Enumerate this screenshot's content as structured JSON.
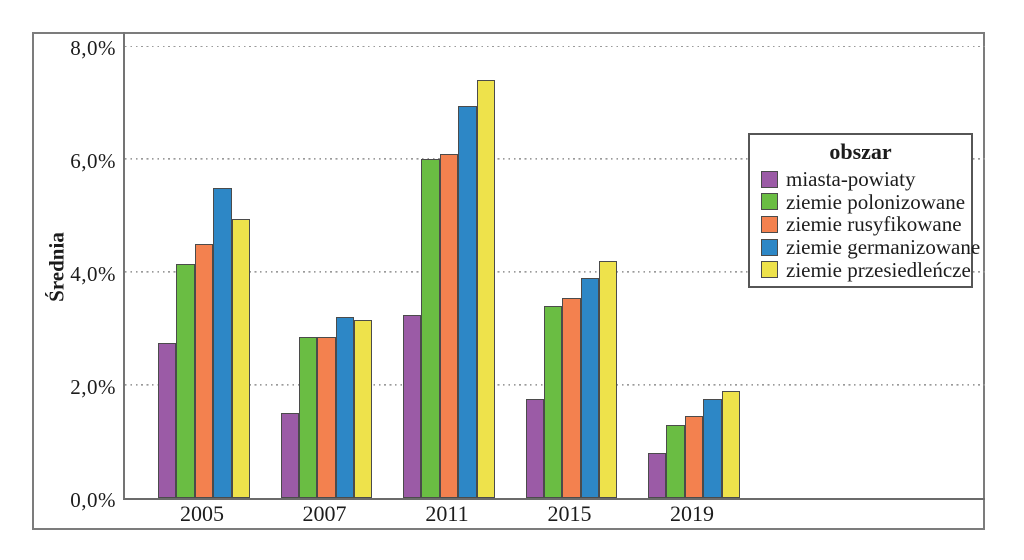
{
  "chart_data": {
    "type": "bar",
    "title": "",
    "ylabel": "Średnia",
    "xlabel": "",
    "legend_title": "obszar",
    "legend_position": "right-inside",
    "grid": "horizontal-dotted",
    "ylim": [
      0,
      8.29
    ],
    "y_ticks": [
      "0,0%",
      "2,0%",
      "4,0%",
      "6,0%",
      "8,0%"
    ],
    "y_tick_values": [
      0,
      2,
      4,
      6,
      8
    ],
    "categories": [
      "2005",
      "2007",
      "2011",
      "2015",
      "2019"
    ],
    "series": [
      {
        "name": "miasta-powiaty",
        "color": "#9b5ba6",
        "values": [
          2.75,
          1.5,
          3.25,
          1.75,
          0.8
        ]
      },
      {
        "name": "ziemie polonizowane",
        "color": "#6abd43",
        "values": [
          4.15,
          2.85,
          6.0,
          3.4,
          1.3
        ]
      },
      {
        "name": "ziemie rusyfikowane",
        "color": "#f3814f",
        "values": [
          4.5,
          2.85,
          6.1,
          3.55,
          1.45
        ]
      },
      {
        "name": "ziemie germanizowane",
        "color": "#2d87c6",
        "values": [
          5.5,
          3.2,
          6.95,
          3.9,
          1.75
        ]
      },
      {
        "name": "ziemie przesiedleńcze",
        "color": "#eee24b",
        "values": [
          4.95,
          3.15,
          7.4,
          4.2,
          1.9
        ]
      }
    ]
  }
}
